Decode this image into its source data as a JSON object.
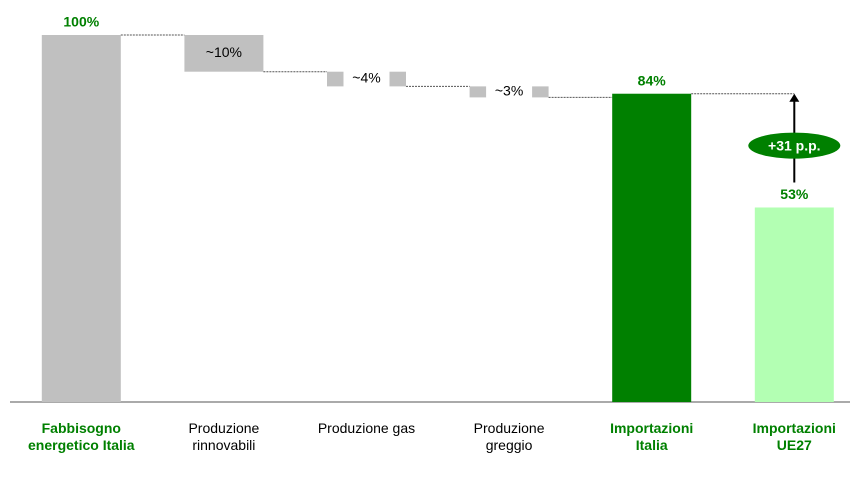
{
  "chart_data": {
    "type": "waterfall",
    "categories": [
      "Fabbisogno energetico Italia",
      "Produzione rinnovabili",
      "Produzione gas",
      "Produzione greggio",
      "Importazioni Italia",
      "Importazioni UE27"
    ],
    "values": [
      100,
      10,
      4,
      3,
      84,
      53
    ],
    "value_labels": [
      "100%",
      "~10%",
      "~4%",
      "~3%",
      "84%",
      "53%"
    ],
    "totals": [
      true,
      false,
      false,
      false,
      true,
      true
    ],
    "colors": [
      "#c0c0c0",
      "#c0c0c0",
      "#c0c0c0",
      "#c0c0c0",
      "#008000",
      "#b3ffb3"
    ],
    "ylim": [
      0,
      100
    ],
    "annotation": "+31 p.p."
  }
}
